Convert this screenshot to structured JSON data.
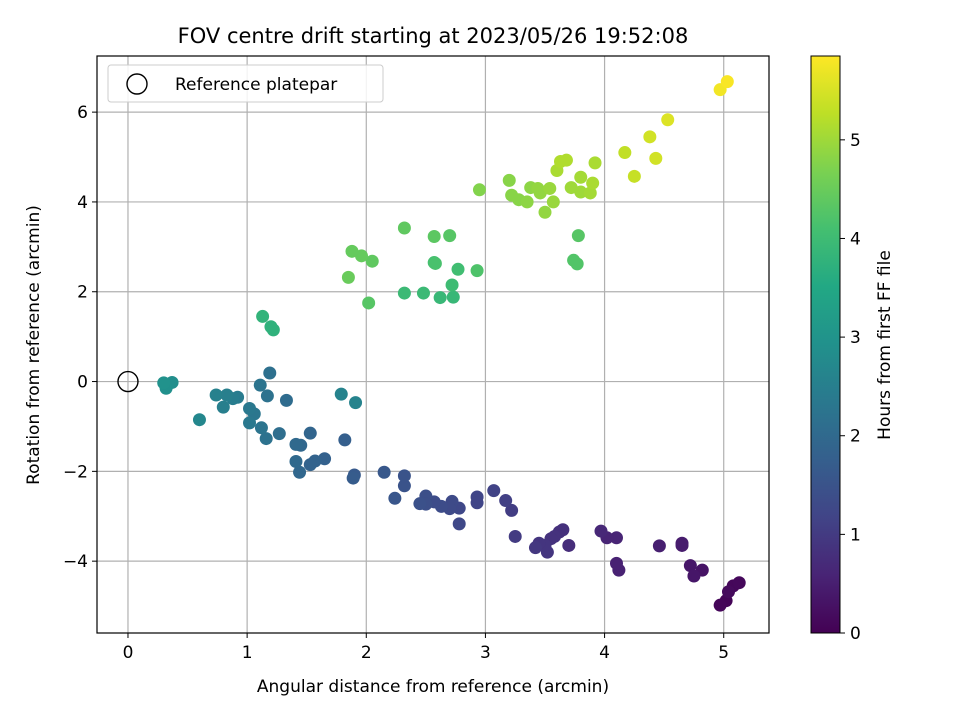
{
  "chart_data": {
    "type": "scatter",
    "title": "FOV centre drift starting at 2023/05/26 19:52:08",
    "xlabel": "Angular distance from reference (arcmin)",
    "ylabel": "Rotation from reference (arcmin)",
    "xlim": [
      -0.26,
      5.38
    ],
    "ylim": [
      -5.6,
      7.25
    ],
    "x_ticks": [
      0,
      1,
      2,
      3,
      4,
      5
    ],
    "y_ticks": [
      -4,
      -2,
      0,
      2,
      4,
      6
    ],
    "grid": true,
    "legend": {
      "placement": "top-left",
      "entries": [
        "Reference platepar"
      ]
    },
    "reference_point": {
      "x": 0,
      "y": 0,
      "marker": "open-circle"
    },
    "colorbar": {
      "label": "Hours from first FF file",
      "colormap": "viridis",
      "min": 0,
      "max": 5.85,
      "ticks": [
        0,
        1,
        2,
        3,
        4,
        5
      ]
    },
    "points": [
      {
        "x": 5.02,
        "y": -4.88,
        "h": 0.05
      },
      {
        "x": 4.97,
        "y": -4.98,
        "h": 0.08
      },
      {
        "x": 5.08,
        "y": -4.55,
        "h": 0.1
      },
      {
        "x": 5.13,
        "y": -4.48,
        "h": 0.12
      },
      {
        "x": 5.04,
        "y": -4.68,
        "h": 0.15
      },
      {
        "x": 4.82,
        "y": -4.2,
        "h": 0.3
      },
      {
        "x": 4.72,
        "y": -4.1,
        "h": 0.35
      },
      {
        "x": 4.75,
        "y": -4.33,
        "h": 0.35
      },
      {
        "x": 4.65,
        "y": -3.6,
        "h": 0.45
      },
      {
        "x": 4.65,
        "y": -3.65,
        "h": 0.45
      },
      {
        "x": 4.46,
        "y": -3.66,
        "h": 0.5
      },
      {
        "x": 4.12,
        "y": -4.2,
        "h": 0.55
      },
      {
        "x": 4.1,
        "y": -4.05,
        "h": 0.55
      },
      {
        "x": 4.1,
        "y": -3.48,
        "h": 0.6
      },
      {
        "x": 4.02,
        "y": -3.48,
        "h": 0.6
      },
      {
        "x": 3.97,
        "y": -3.33,
        "h": 0.65
      },
      {
        "x": 3.7,
        "y": -3.65,
        "h": 0.75
      },
      {
        "x": 3.65,
        "y": -3.3,
        "h": 0.8
      },
      {
        "x": 3.62,
        "y": -3.35,
        "h": 0.8
      },
      {
        "x": 3.58,
        "y": -3.45,
        "h": 0.85
      },
      {
        "x": 3.55,
        "y": -3.5,
        "h": 0.85
      },
      {
        "x": 3.52,
        "y": -3.8,
        "h": 0.9
      },
      {
        "x": 3.5,
        "y": -3.65,
        "h": 0.9
      },
      {
        "x": 3.45,
        "y": -3.6,
        "h": 0.9
      },
      {
        "x": 3.42,
        "y": -3.7,
        "h": 0.95
      },
      {
        "x": 3.25,
        "y": -3.45,
        "h": 1.0
      },
      {
        "x": 3.22,
        "y": -2.87,
        "h": 1.05
      },
      {
        "x": 3.17,
        "y": -2.65,
        "h": 1.1
      },
      {
        "x": 3.07,
        "y": -2.43,
        "h": 1.15
      },
      {
        "x": 2.93,
        "y": -2.57,
        "h": 1.2
      },
      {
        "x": 2.93,
        "y": -2.7,
        "h": 1.2
      },
      {
        "x": 2.78,
        "y": -2.82,
        "h": 1.25
      },
      {
        "x": 2.78,
        "y": -3.17,
        "h": 1.25
      },
      {
        "x": 2.72,
        "y": -2.67,
        "h": 1.3
      },
      {
        "x": 2.7,
        "y": -2.83,
        "h": 1.3
      },
      {
        "x": 2.63,
        "y": -2.78,
        "h": 1.35
      },
      {
        "x": 2.57,
        "y": -2.68,
        "h": 1.35
      },
      {
        "x": 2.5,
        "y": -2.55,
        "h": 1.4
      },
      {
        "x": 2.5,
        "y": -2.73,
        "h": 1.4
      },
      {
        "x": 2.45,
        "y": -2.72,
        "h": 1.45
      },
      {
        "x": 2.32,
        "y": -2.32,
        "h": 1.5
      },
      {
        "x": 2.32,
        "y": -2.1,
        "h": 1.5
      },
      {
        "x": 2.24,
        "y": -2.6,
        "h": 1.55
      },
      {
        "x": 2.15,
        "y": -2.02,
        "h": 1.6
      },
      {
        "x": 1.9,
        "y": -2.08,
        "h": 1.65
      },
      {
        "x": 1.89,
        "y": -2.15,
        "h": 1.7
      },
      {
        "x": 1.82,
        "y": -1.3,
        "h": 1.75
      },
      {
        "x": 1.65,
        "y": -1.72,
        "h": 1.8
      },
      {
        "x": 1.57,
        "y": -1.77,
        "h": 1.85
      },
      {
        "x": 1.53,
        "y": -1.85,
        "h": 1.85
      },
      {
        "x": 1.53,
        "y": -1.15,
        "h": 1.9
      },
      {
        "x": 1.45,
        "y": -1.42,
        "h": 1.95
      },
      {
        "x": 1.44,
        "y": -2.02,
        "h": 1.95
      },
      {
        "x": 1.41,
        "y": -1.4,
        "h": 2.0
      },
      {
        "x": 1.41,
        "y": -1.78,
        "h": 2.0
      },
      {
        "x": 1.33,
        "y": -0.42,
        "h": 2.05
      },
      {
        "x": 1.27,
        "y": -1.16,
        "h": 2.1
      },
      {
        "x": 1.19,
        "y": 0.19,
        "h": 2.15
      },
      {
        "x": 1.17,
        "y": -0.32,
        "h": 2.2
      },
      {
        "x": 1.16,
        "y": -1.27,
        "h": 2.2
      },
      {
        "x": 1.12,
        "y": -1.03,
        "h": 2.25
      },
      {
        "x": 1.11,
        "y": -0.08,
        "h": 2.25
      },
      {
        "x": 1.06,
        "y": -0.72,
        "h": 2.3
      },
      {
        "x": 1.02,
        "y": -0.6,
        "h": 2.35
      },
      {
        "x": 1.02,
        "y": -0.92,
        "h": 2.35
      },
      {
        "x": 0.92,
        "y": -0.35,
        "h": 2.4
      },
      {
        "x": 0.88,
        "y": -0.38,
        "h": 2.45
      },
      {
        "x": 0.83,
        "y": -0.3,
        "h": 2.5
      },
      {
        "x": 0.8,
        "y": -0.57,
        "h": 2.5
      },
      {
        "x": 0.74,
        "y": -0.3,
        "h": 2.55
      },
      {
        "x": 1.91,
        "y": -0.47,
        "h": 2.6
      },
      {
        "x": 1.79,
        "y": -0.28,
        "h": 2.6
      },
      {
        "x": 0.6,
        "y": -0.85,
        "h": 2.7
      },
      {
        "x": 0.37,
        "y": -0.02,
        "h": 2.85
      },
      {
        "x": 0.32,
        "y": -0.15,
        "h": 2.9
      },
      {
        "x": 0.3,
        "y": -0.03,
        "h": 2.95
      },
      {
        "x": 1.2,
        "y": 1.22,
        "h": 3.75
      },
      {
        "x": 1.22,
        "y": 1.15,
        "h": 3.75
      },
      {
        "x": 1.13,
        "y": 1.45,
        "h": 3.8
      },
      {
        "x": 2.73,
        "y": 1.88,
        "h": 3.9
      },
      {
        "x": 2.62,
        "y": 1.87,
        "h": 3.9
      },
      {
        "x": 2.48,
        "y": 1.97,
        "h": 3.95
      },
      {
        "x": 2.32,
        "y": 1.97,
        "h": 3.95
      },
      {
        "x": 2.72,
        "y": 2.15,
        "h": 4.0
      },
      {
        "x": 2.77,
        "y": 2.5,
        "h": 4.05
      },
      {
        "x": 2.02,
        "y": 1.75,
        "h": 4.3
      },
      {
        "x": 2.57,
        "y": 2.65,
        "h": 4.1
      },
      {
        "x": 2.58,
        "y": 2.63,
        "h": 4.15
      },
      {
        "x": 2.93,
        "y": 2.47,
        "h": 4.2
      },
      {
        "x": 3.77,
        "y": 2.62,
        "h": 4.25
      },
      {
        "x": 3.74,
        "y": 2.7,
        "h": 4.25
      },
      {
        "x": 3.78,
        "y": 3.25,
        "h": 4.3
      },
      {
        "x": 2.7,
        "y": 3.25,
        "h": 4.3
      },
      {
        "x": 2.57,
        "y": 3.23,
        "h": 4.35
      },
      {
        "x": 2.32,
        "y": 3.42,
        "h": 4.4
      },
      {
        "x": 2.05,
        "y": 2.68,
        "h": 4.4
      },
      {
        "x": 1.96,
        "y": 2.8,
        "h": 4.45
      },
      {
        "x": 1.88,
        "y": 2.9,
        "h": 4.45
      },
      {
        "x": 1.85,
        "y": 2.32,
        "h": 4.5
      },
      {
        "x": 2.95,
        "y": 4.27,
        "h": 4.75
      },
      {
        "x": 3.2,
        "y": 4.48,
        "h": 4.8
      },
      {
        "x": 3.22,
        "y": 4.15,
        "h": 4.8
      },
      {
        "x": 3.28,
        "y": 4.05,
        "h": 4.8
      },
      {
        "x": 3.35,
        "y": 4.0,
        "h": 4.85
      },
      {
        "x": 3.38,
        "y": 4.32,
        "h": 4.85
      },
      {
        "x": 3.44,
        "y": 4.3,
        "h": 4.9
      },
      {
        "x": 3.46,
        "y": 4.2,
        "h": 4.9
      },
      {
        "x": 3.5,
        "y": 3.77,
        "h": 4.9
      },
      {
        "x": 3.54,
        "y": 4.3,
        "h": 4.95
      },
      {
        "x": 3.57,
        "y": 4.0,
        "h": 4.95
      },
      {
        "x": 3.72,
        "y": 4.32,
        "h": 5.0
      },
      {
        "x": 3.8,
        "y": 4.22,
        "h": 5.0
      },
      {
        "x": 3.8,
        "y": 4.55,
        "h": 5.05
      },
      {
        "x": 3.88,
        "y": 4.2,
        "h": 5.05
      },
      {
        "x": 3.9,
        "y": 4.42,
        "h": 5.1
      },
      {
        "x": 3.92,
        "y": 4.87,
        "h": 5.1
      },
      {
        "x": 3.6,
        "y": 4.7,
        "h": 5.1
      },
      {
        "x": 3.63,
        "y": 4.9,
        "h": 5.15
      },
      {
        "x": 3.68,
        "y": 4.93,
        "h": 5.15
      },
      {
        "x": 4.17,
        "y": 5.1,
        "h": 5.3
      },
      {
        "x": 4.25,
        "y": 4.57,
        "h": 5.35
      },
      {
        "x": 4.38,
        "y": 5.45,
        "h": 5.45
      },
      {
        "x": 4.43,
        "y": 4.97,
        "h": 5.45
      },
      {
        "x": 4.53,
        "y": 5.83,
        "h": 5.55
      },
      {
        "x": 4.97,
        "y": 6.5,
        "h": 5.75
      },
      {
        "x": 5.03,
        "y": 6.68,
        "h": 5.8
      }
    ]
  }
}
